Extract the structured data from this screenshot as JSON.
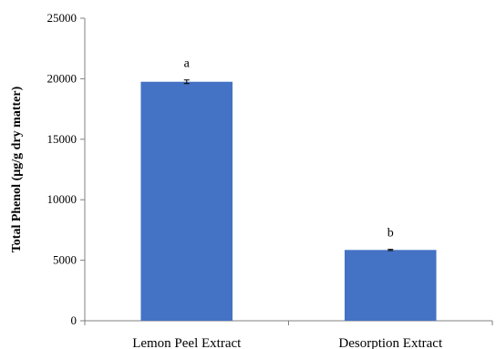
{
  "chart_data": {
    "type": "bar",
    "title": "",
    "xlabel": "",
    "ylabel": "Total Phenol (µg/g dry matter)",
    "categories": [
      "Lemon Peel Extract",
      "Desorption Extract"
    ],
    "series": [
      {
        "values": [
          19750,
          5850
        ],
        "error": [
          150,
          50
        ],
        "color": "#4472C4"
      }
    ],
    "significance_letters": [
      "a",
      "b"
    ],
    "ylim": [
      0,
      25000
    ],
    "y_ticks": [
      0,
      5000,
      10000,
      15000,
      20000,
      25000
    ],
    "grid": false,
    "legend": "none"
  }
}
